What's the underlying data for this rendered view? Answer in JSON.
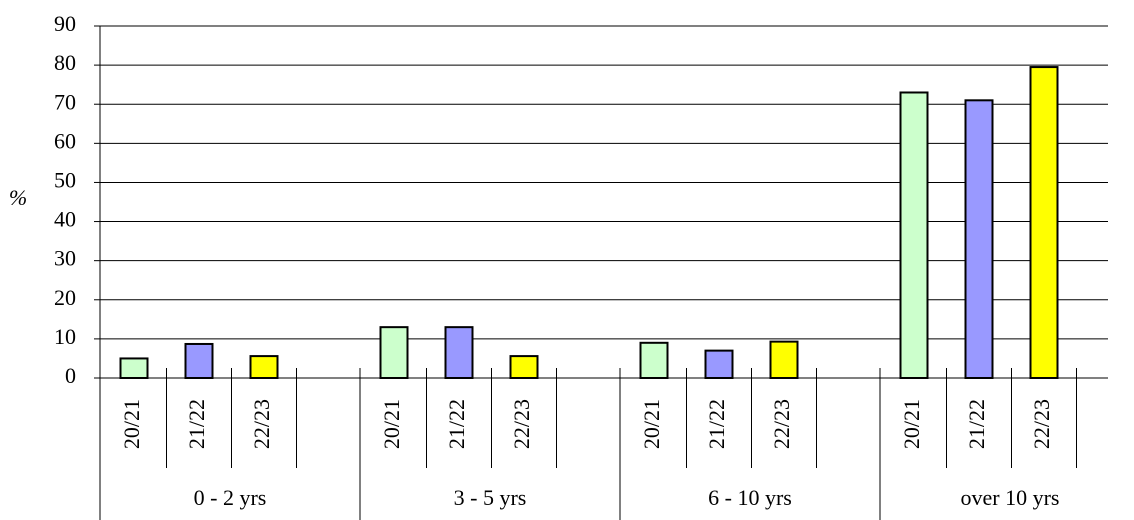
{
  "chart_data": {
    "type": "bar",
    "y_label": "%",
    "categories": [
      "0 - 2 yrs",
      "3 - 5 yrs",
      "6 - 10 yrs",
      "over 10 yrs"
    ],
    "series": [
      {
        "name": "20/21",
        "color": "#ccffcc",
        "values": [
          5,
          13,
          9,
          73
        ]
      },
      {
        "name": "21/22",
        "color": "#9999ff",
        "values": [
          8.7,
          13,
          7,
          71
        ]
      },
      {
        "name": "22/23",
        "color": "#ffff00",
        "values": [
          5.6,
          5.6,
          9.3,
          79.5
        ]
      }
    ],
    "ylim": [
      0,
      90
    ],
    "yticks": [
      0,
      10,
      20,
      30,
      40,
      50,
      60,
      70,
      80,
      90
    ],
    "grid": true
  }
}
